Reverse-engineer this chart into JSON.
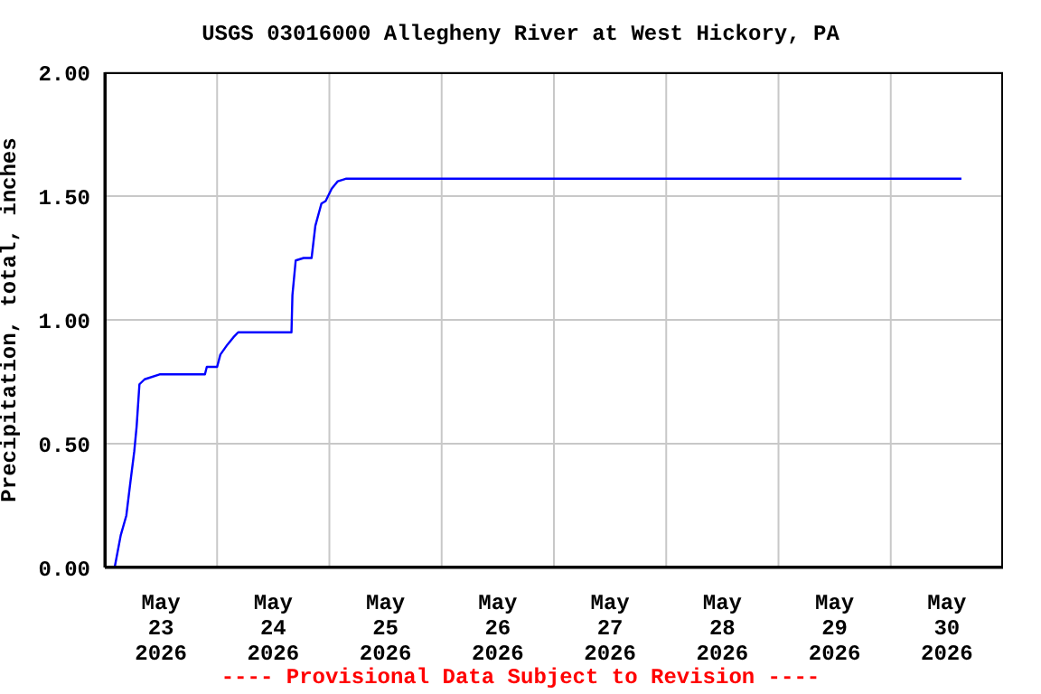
{
  "chart_data": {
    "type": "line",
    "title": "USGS 03016000 Allegheny River at West Hickory, PA",
    "ylabel": "Precipitation, total, inches",
    "annotations": [
      "---- Provisional Data Subject to Revision ----"
    ],
    "series": [
      {
        "color": "#0000ff",
        "x": [
          "2026-05-23T00:00",
          "2026-05-23T02:06",
          "2026-05-23T03:24",
          "2026-05-23T04:36",
          "2026-05-23T05:30",
          "2026-05-23T06:18",
          "2026-05-23T06:48",
          "2026-05-23T07:24",
          "2026-05-23T08:30",
          "2026-05-23T11:42",
          "2026-05-23T21:24",
          "2026-05-23T21:48",
          "2026-05-24T00:00",
          "2026-05-24T00:42",
          "2026-05-24T02:12",
          "2026-05-24T03:30",
          "2026-05-24T04:30",
          "2026-05-24T15:54",
          "2026-05-24T16:06",
          "2026-05-24T16:48",
          "2026-05-24T18:30",
          "2026-05-24T20:12",
          "2026-05-24T21:00",
          "2026-05-24T22:18",
          "2026-05-24T23:12",
          "2026-05-25T00:30",
          "2026-05-25T01:48",
          "2026-05-25T03:30",
          "2026-05-30T15:06"
        ],
        "values": [
          0,
          0,
          0.13,
          0.21,
          0.35,
          0.47,
          0.57,
          0.74,
          0.76,
          0.78,
          0.78,
          0.81,
          0.81,
          0.86,
          0.9,
          0.93,
          0.95,
          0.95,
          1.1,
          1.24,
          1.25,
          1.25,
          1.38,
          1.47,
          1.48,
          1.53,
          1.56,
          1.57,
          1.57
        ]
      }
    ],
    "xlim": [
      "2026-05-23T00:00",
      "2026-05-31T00:00"
    ],
    "xticks": [
      {
        "value": "2026-05-23T12:00",
        "label": "May\n23\n2026"
      },
      {
        "value": "2026-05-24T00:00",
        "label": null
      },
      {
        "value": "2026-05-24T12:00",
        "label": "May\n24\n2026"
      },
      {
        "value": "2026-05-25T00:00",
        "label": null
      },
      {
        "value": "2026-05-25T12:00",
        "label": "May\n25\n2026"
      },
      {
        "value": "2026-05-26T00:00",
        "label": null
      },
      {
        "value": "2026-05-26T12:00",
        "label": "May\n26\n2026"
      },
      {
        "value": "2026-05-27T00:00",
        "label": null
      },
      {
        "value": "2026-05-27T12:00",
        "label": "May\n27\n2026"
      },
      {
        "value": "2026-05-28T00:00",
        "label": null
      },
      {
        "value": "2026-05-28T12:00",
        "label": "May\n28\n2026"
      },
      {
        "value": "2026-05-29T00:00",
        "label": null
      },
      {
        "value": "2026-05-29T12:00",
        "label": "May\n29\n2026"
      },
      {
        "value": "2026-05-30T00:00",
        "label": null
      },
      {
        "value": "2026-05-30T12:00",
        "label": "May\n30\n2026"
      }
    ],
    "ylim": [
      0,
      2
    ],
    "yticks": [
      {
        "value": 0,
        "label": "0.00"
      },
      {
        "value": 0.5,
        "label": "0.50"
      },
      {
        "value": 1,
        "label": "1.00"
      },
      {
        "value": 1.5,
        "label": "1.50"
      },
      {
        "value": 2,
        "label": "2.00"
      }
    ],
    "grid": true,
    "legend": false,
    "marker": "none",
    "line_style": "solid"
  }
}
